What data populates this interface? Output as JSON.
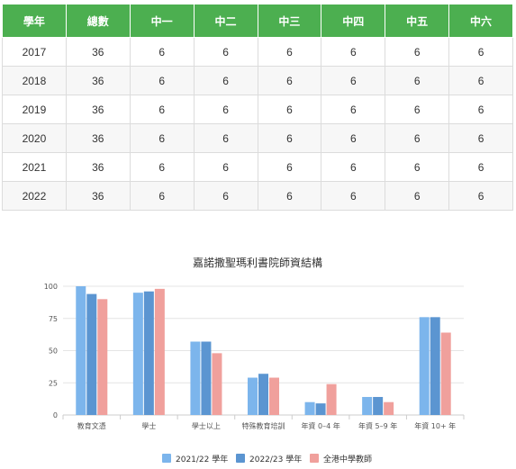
{
  "table": {
    "headers": [
      "學年",
      "總數",
      "中一",
      "中二",
      "中三",
      "中四",
      "中五",
      "中六"
    ],
    "rows": [
      [
        "2017",
        "36",
        "6",
        "6",
        "6",
        "6",
        "6",
        "6"
      ],
      [
        "2018",
        "36",
        "6",
        "6",
        "6",
        "6",
        "6",
        "6"
      ],
      [
        "2019",
        "36",
        "6",
        "6",
        "6",
        "6",
        "6",
        "6"
      ],
      [
        "2020",
        "36",
        "6",
        "6",
        "6",
        "6",
        "6",
        "6"
      ],
      [
        "2021",
        "36",
        "6",
        "6",
        "6",
        "6",
        "6",
        "6"
      ],
      [
        "2022",
        "36",
        "6",
        "6",
        "6",
        "6",
        "6",
        "6"
      ]
    ]
  },
  "chart_data": {
    "type": "bar",
    "title": "嘉諾撒聖瑪利書院師資結構",
    "categories": [
      "教育文憑",
      "學士",
      "學士以上",
      "特殊教育培訓",
      "年資 0–4 年",
      "年資 5–9 年",
      "年資 10+ 年"
    ],
    "series": [
      {
        "name": "2021/22 學年",
        "color": "#7cb5ec",
        "values": [
          100,
          95,
          57,
          29,
          10,
          14,
          76
        ]
      },
      {
        "name": "2022/23 學年",
        "color": "#5b95d1",
        "values": [
          94,
          96,
          57,
          32,
          9,
          14,
          76
        ]
      },
      {
        "name": "全港中學教師",
        "color": "#f0a09c",
        "values": [
          90,
          98,
          48,
          29,
          24,
          10,
          64
        ]
      }
    ],
    "yticks": [
      0,
      25,
      50,
      75,
      100
    ],
    "ylim": [
      0,
      100
    ],
    "grid": true,
    "legend": "bottom"
  }
}
